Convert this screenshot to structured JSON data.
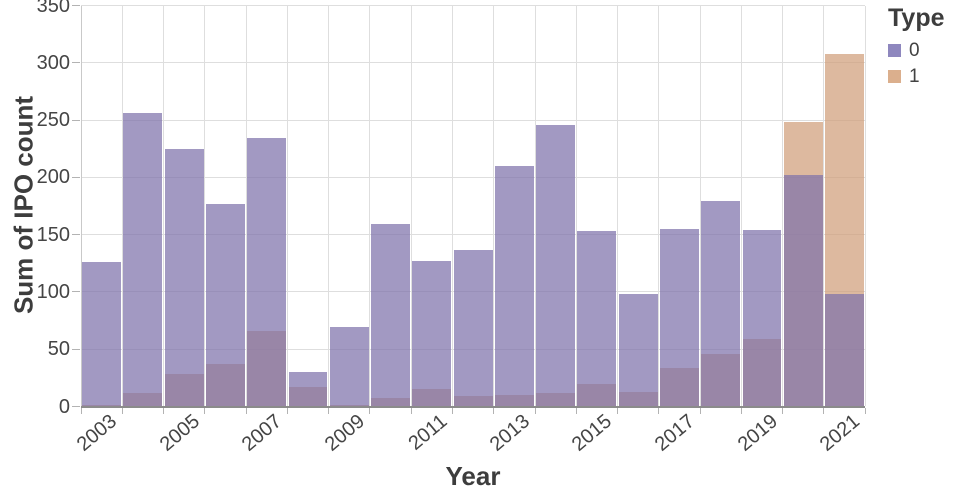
{
  "y_axis": {
    "title": "Sum of IPO count",
    "tick_values": [
      0,
      50,
      100,
      150,
      200,
      250,
      300,
      350
    ]
  },
  "x_axis": {
    "title": "Year",
    "tick_labels": [
      "2003",
      "2005",
      "2007",
      "2009",
      "2011",
      "2013",
      "2015",
      "2017",
      "2019",
      "2021"
    ]
  },
  "legend": {
    "title": "Type",
    "items": [
      {
        "label": "0",
        "swatch": "#8E87BE"
      },
      {
        "label": "1",
        "swatch": "#DBAF8D"
      }
    ]
  },
  "chart_data": {
    "type": "bar",
    "layout": "layered-overlapping",
    "title": "",
    "xlabel": "Year",
    "ylabel": "Sum of IPO count",
    "categories": [
      2003,
      2004,
      2005,
      2006,
      2007,
      2008,
      2009,
      2010,
      2011,
      2012,
      2013,
      2014,
      2015,
      2016,
      2017,
      2018,
      2019,
      2020,
      2021
    ],
    "series": [
      {
        "name": "0",
        "color": "#A29AC3",
        "css_color": "rgba(126,113,170,0.72)",
        "values": [
          126,
          256,
          225,
          177,
          234,
          30,
          69,
          159,
          127,
          137,
          210,
          246,
          153,
          98,
          155,
          179,
          154,
          202,
          98
        ]
      },
      {
        "name": "1",
        "color": "#DDBAA0",
        "css_color": "rgba(208,158,122,0.72)",
        "values": [
          1,
          12,
          28,
          37,
          66,
          17,
          1,
          7,
          15,
          9,
          10,
          12,
          20,
          13,
          34,
          46,
          59,
          248,
          308
        ]
      }
    ],
    "overlap_color": "#97799B",
    "ylim": [
      0,
      350
    ],
    "y_tick_step": 50,
    "grid": true,
    "legend_position": "top-right",
    "x_tick_label_rotation": -40
  }
}
